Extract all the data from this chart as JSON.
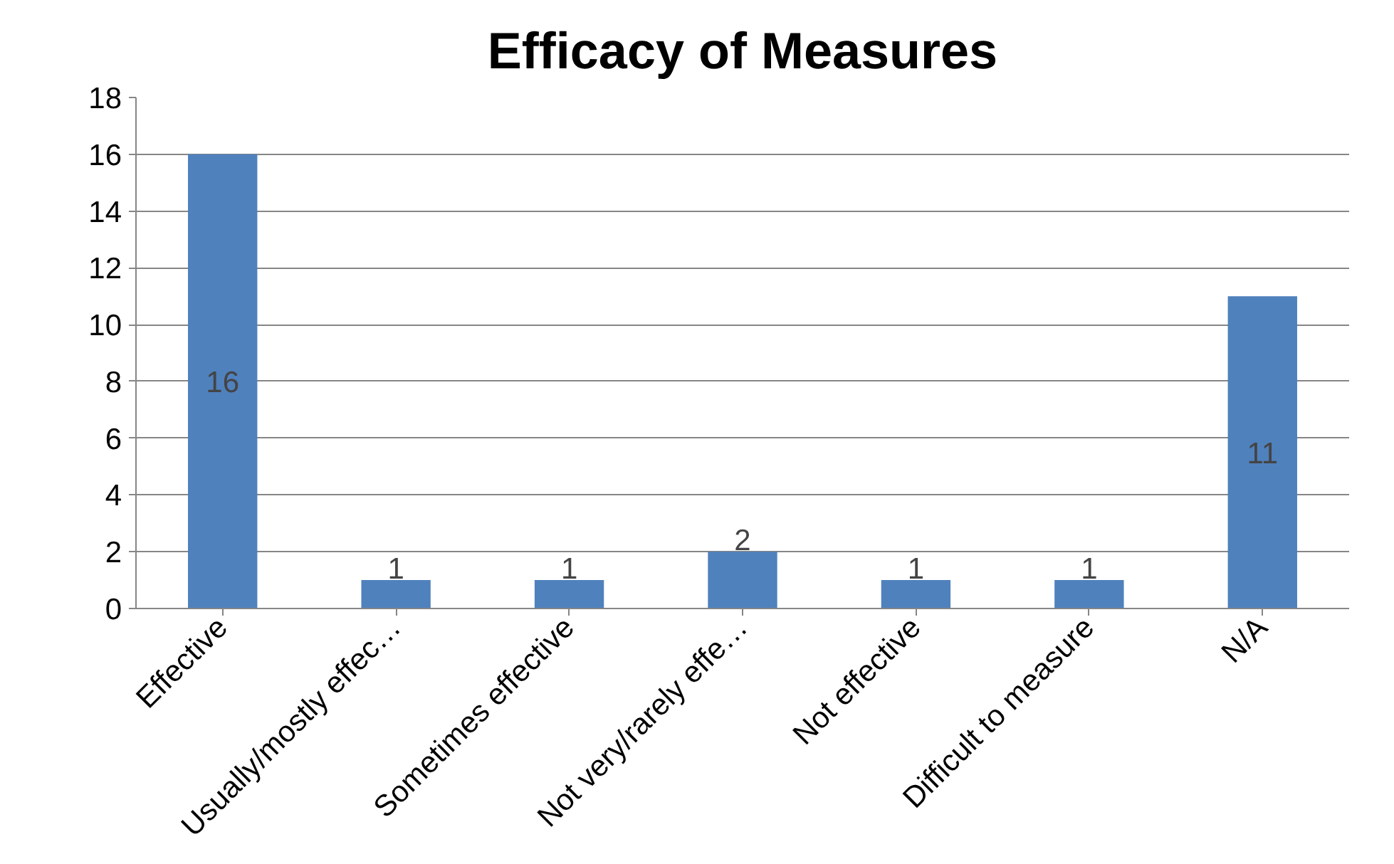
{
  "chart_data": {
    "type": "bar",
    "title": "Efficacy of Measures",
    "categories": [
      "Effective",
      "Usually/mostly effec…",
      "Sometimes effective",
      "Not very/rarely effe…",
      "Not effective",
      "Difficult to measure",
      "N/A"
    ],
    "values": [
      16,
      1,
      1,
      2,
      1,
      1,
      11
    ],
    "color": "#4f81bd",
    "ylim": [
      0,
      18
    ],
    "yticks": [
      0,
      2,
      4,
      6,
      8,
      10,
      12,
      14,
      16,
      18
    ],
    "grid": "y",
    "data_labels": true
  }
}
